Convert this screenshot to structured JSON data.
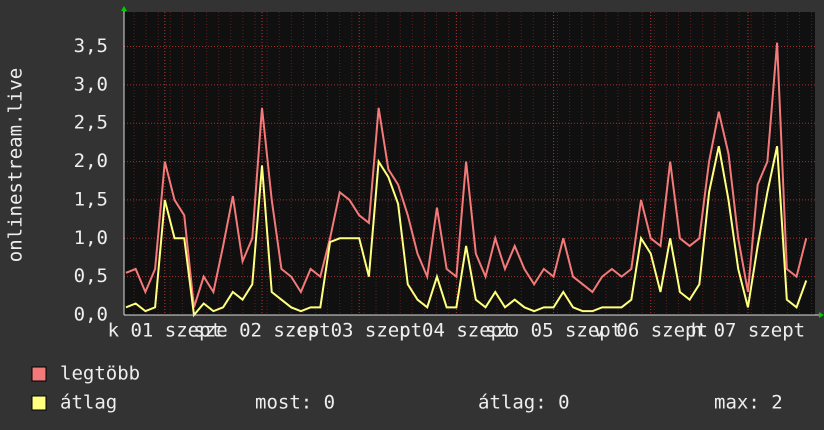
{
  "chart_data": {
    "type": "line",
    "y_label": "onlinestream.live",
    "x": [
      0.6,
      0.7,
      0.8,
      0.9,
      1.0,
      1.1,
      1.2,
      1.3,
      1.4,
      1.5,
      1.6,
      1.7,
      1.8,
      1.9,
      2.0,
      2.1,
      2.2,
      2.3,
      2.4,
      2.5,
      2.6,
      2.7,
      2.8,
      2.9,
      3.0,
      3.1,
      3.2,
      3.3,
      3.4,
      3.5,
      3.6,
      3.7,
      3.8,
      3.9,
      4.0,
      4.1,
      4.2,
      4.3,
      4.4,
      4.5,
      4.6,
      4.7,
      4.8,
      4.9,
      5.0,
      5.1,
      5.2,
      5.3,
      5.4,
      5.5,
      5.6,
      5.7,
      5.8,
      5.9,
      6.0,
      6.1,
      6.2,
      6.3,
      6.4,
      6.5,
      6.6,
      6.7,
      6.8,
      6.9,
      7.0,
      7.1,
      7.2,
      7.3,
      7.4,
      7.5,
      7.6
    ],
    "series": [
      {
        "name": "legtöbb",
        "color": "#f47a7a",
        "values": [
          0.55,
          0.6,
          0.3,
          0.6,
          2.0,
          1.5,
          1.3,
          0.1,
          0.5,
          0.3,
          0.9,
          1.55,
          0.7,
          1.0,
          2.7,
          1.5,
          0.6,
          0.5,
          0.3,
          0.6,
          0.5,
          1.0,
          1.6,
          1.5,
          1.3,
          1.2,
          2.7,
          1.9,
          1.7,
          1.3,
          0.8,
          0.5,
          1.4,
          0.6,
          0.5,
          2.0,
          0.8,
          0.5,
          1.0,
          0.6,
          0.9,
          0.6,
          0.4,
          0.6,
          0.5,
          1.0,
          0.5,
          0.4,
          0.3,
          0.5,
          0.6,
          0.5,
          0.6,
          1.5,
          1.0,
          0.9,
          2.0,
          1.0,
          0.9,
          1.0,
          2.0,
          2.65,
          2.1,
          1.0,
          0.3,
          1.7,
          2.0,
          3.55,
          0.6,
          0.5,
          1.0
        ]
      },
      {
        "name": "átlag",
        "color": "#ffff80",
        "values": [
          0.1,
          0.15,
          0.05,
          0.1,
          1.5,
          1.0,
          1.0,
          0,
          0.15,
          0.05,
          0.1,
          0.3,
          0.2,
          0.4,
          1.95,
          0.3,
          0.2,
          0.1,
          0.05,
          0.1,
          0.1,
          0.95,
          1.0,
          1.0,
          1.0,
          0.5,
          2.0,
          1.8,
          1.45,
          0.4,
          0.2,
          0.1,
          0.5,
          0.1,
          0.1,
          0.9,
          0.2,
          0.1,
          0.3,
          0.1,
          0.2,
          0.1,
          0.05,
          0.1,
          0.1,
          0.3,
          0.1,
          0.05,
          0.05,
          0.1,
          0.1,
          0.1,
          0.2,
          1.0,
          0.8,
          0.3,
          1.0,
          0.3,
          0.2,
          0.4,
          1.6,
          2.2,
          1.5,
          0.6,
          0.1,
          0.9,
          1.6,
          2.2,
          0.2,
          0.1,
          0.45
        ]
      }
    ],
    "xlim": [
      0.58,
      7.69
    ],
    "xticks": [
      {
        "value": 1,
        "label": "k 01 szept"
      },
      {
        "value": 2,
        "label": "sze 02 szept"
      },
      {
        "value": 3,
        "label": "cs 03 szept"
      },
      {
        "value": 4,
        "label": "p 04 szept"
      },
      {
        "value": 5,
        "label": "szo 05 szept"
      },
      {
        "value": 6,
        "label": "v 06 szept"
      },
      {
        "value": 7,
        "label": "h 07 szept"
      }
    ],
    "ylim": [
      0,
      3.95
    ],
    "yticks": [
      {
        "value": 0,
        "label": "0,0"
      },
      {
        "value": 0.5,
        "label": "0,5"
      },
      {
        "value": 1,
        "label": "1,0"
      },
      {
        "value": 1.5,
        "label": "1,5"
      },
      {
        "value": 2,
        "label": "2,0"
      },
      {
        "value": 2.5,
        "label": "2,5"
      },
      {
        "value": 3,
        "label": "3,0"
      },
      {
        "value": 3.5,
        "label": "3,5"
      }
    ],
    "grid": true,
    "stats": [
      "most: 0",
      "átlag: 0",
      "max: 2"
    ]
  }
}
